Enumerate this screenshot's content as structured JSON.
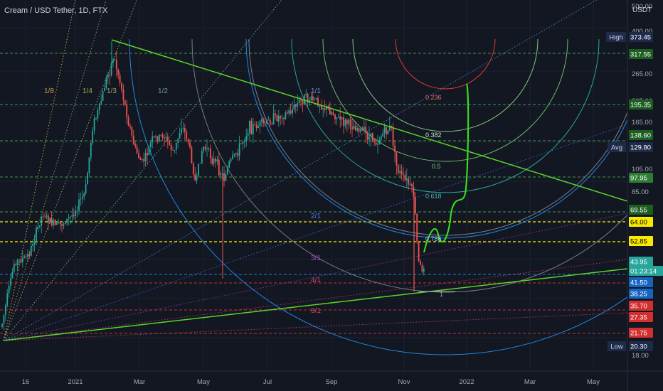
{
  "title": "Cream / USD Tether, 1D, FTX",
  "currency": "USDT",
  "price_axis_ticks": [
    "500.00",
    "400.00",
    "265.00",
    "205.00",
    "165.00",
    "105.00",
    "85.00",
    "18.00"
  ],
  "time_axis_labels": [
    "16",
    "2021",
    "Mar",
    "May",
    "Jul",
    "Sep",
    "Nov",
    "2022",
    "Mar",
    "May"
  ],
  "price_badges": [
    {
      "label": "High",
      "value": "373.45",
      "bg": "#1e2a4a",
      "fg": "#ffffff"
    },
    {
      "label": "",
      "value": "317.55",
      "bg": "#1b5e20",
      "fg": "#ffffff"
    },
    {
      "label": "",
      "value": "195.35",
      "bg": "#1b5e20",
      "fg": "#ffffff"
    },
    {
      "label": "",
      "value": "138.60",
      "bg": "#1b5e20",
      "fg": "#ffffff"
    },
    {
      "label": "Avg",
      "value": "129.80",
      "bg": "#1e2a4a",
      "fg": "#ffffff"
    },
    {
      "label": "",
      "value": "97.95",
      "bg": "#2e7d32",
      "fg": "#ffffff"
    },
    {
      "label": "",
      "value": "69.55",
      "bg": "#1b5e20",
      "fg": "#ffffff"
    },
    {
      "label": "",
      "value": "64.00",
      "bg": "#f9e900",
      "fg": "#000000"
    },
    {
      "label": "",
      "value": "52.85",
      "bg": "#f9e900",
      "fg": "#000000"
    },
    {
      "label": "",
      "value": "43.95",
      "bg": "#26a69a",
      "fg": "#ffffff"
    },
    {
      "label": "",
      "value": "01:23:14",
      "bg": "#26a69a",
      "fg": "#ffffff"
    },
    {
      "label": "",
      "value": "41.50",
      "bg": "#1565c0",
      "fg": "#ffffff"
    },
    {
      "label": "",
      "value": "38.25",
      "bg": "#1565c0",
      "fg": "#ffffff"
    },
    {
      "label": "",
      "value": "35.70",
      "bg": "#d32f2f",
      "fg": "#ffffff"
    },
    {
      "label": "",
      "value": "27.35",
      "bg": "#d32f2f",
      "fg": "#ffffff"
    },
    {
      "label": "",
      "value": "21.75",
      "bg": "#d32f2f",
      "fg": "#ffffff"
    },
    {
      "label": "Low",
      "value": "20.30",
      "bg": "#1e2a4a",
      "fg": "#ffffff"
    }
  ],
  "gann_fan_labels": [
    "1/8",
    "1/4",
    "1/3",
    "1/2",
    "1/1",
    "2/1",
    "3/1",
    "4/1",
    "8/1"
  ],
  "fib_arc_labels": [
    "0.236",
    "0.382",
    "0.5",
    "0.618",
    "0.786",
    "1"
  ],
  "colors": {
    "background": "#131722",
    "grid": "#1e2230",
    "candle_up": "#26a69a",
    "candle_down": "#ef5350",
    "trendline": "#5bd52a",
    "projection": "#39e21f",
    "yellow_level": "#f5f200",
    "green_level": "#4caf50",
    "blue_level": "#2196f3",
    "red_level": "#e53935"
  }
}
